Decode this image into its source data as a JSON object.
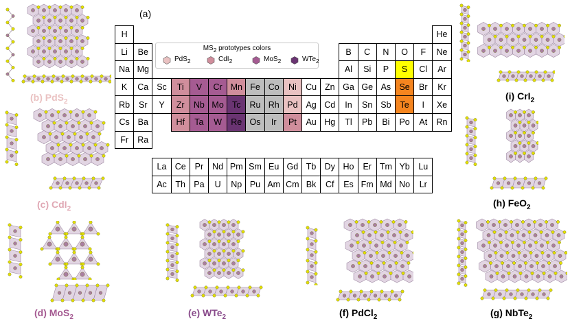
{
  "figure": {
    "panel_label": "(a)",
    "legend": {
      "title_base": "MS",
      "title_sub": "2",
      "title_rest": " prototypes colors",
      "items": [
        {
          "base": "PdS",
          "sub": "2",
          "color": "#eac2c2"
        },
        {
          "base": "CdI",
          "sub": "2",
          "color": "#d08e9c"
        },
        {
          "base": "MoS",
          "sub": "2",
          "color": "#a55b92"
        },
        {
          "base": "WTe",
          "sub": "2",
          "color": "#6a3472"
        }
      ]
    },
    "highlight_colors": {
      "PdS2": "#eac2c2",
      "CdI2": "#d08e9c",
      "MoS2": "#a55b92",
      "WTe2": "#6a3472",
      "grey": "#bdbdbd",
      "S": "#ffff00",
      "SeTe": "#f5851f"
    },
    "atom_colors": {
      "metal": "#a97ea1",
      "chalcogen": "#e3e000",
      "polyhedron": "#d8c7da"
    },
    "periodic_table": {
      "main": [
        {
          "s": "H",
          "r": 0,
          "c": 0
        },
        {
          "s": "He",
          "r": 0,
          "c": 17
        },
        {
          "s": "Li",
          "r": 1,
          "c": 0
        },
        {
          "s": "Be",
          "r": 1,
          "c": 1
        },
        {
          "s": "B",
          "r": 1,
          "c": 12
        },
        {
          "s": "C",
          "r": 1,
          "c": 13
        },
        {
          "s": "N",
          "r": 1,
          "c": 14
        },
        {
          "s": "O",
          "r": 1,
          "c": 15
        },
        {
          "s": "F",
          "r": 1,
          "c": 16
        },
        {
          "s": "Ne",
          "r": 1,
          "c": 17
        },
        {
          "s": "Na",
          "r": 2,
          "c": 0
        },
        {
          "s": "Mg",
          "r": 2,
          "c": 1
        },
        {
          "s": "Al",
          "r": 2,
          "c": 12
        },
        {
          "s": "Si",
          "r": 2,
          "c": 13
        },
        {
          "s": "P",
          "r": 2,
          "c": 14
        },
        {
          "s": "S",
          "r": 2,
          "c": 15,
          "h": "S"
        },
        {
          "s": "Cl",
          "r": 2,
          "c": 16
        },
        {
          "s": "Ar",
          "r": 2,
          "c": 17
        },
        {
          "s": "K",
          "r": 3,
          "c": 0
        },
        {
          "s": "Ca",
          "r": 3,
          "c": 1
        },
        {
          "s": "Sc",
          "r": 3,
          "c": 2
        },
        {
          "s": "Ti",
          "r": 3,
          "c": 3,
          "h": "CdI2"
        },
        {
          "s": "V",
          "r": 3,
          "c": 4,
          "h": "MoS2"
        },
        {
          "s": "Cr",
          "r": 3,
          "c": 5,
          "h": "MoS2"
        },
        {
          "s": "Mn",
          "r": 3,
          "c": 6,
          "h": "CdI2"
        },
        {
          "s": "Fe",
          "r": 3,
          "c": 7,
          "h": "grey"
        },
        {
          "s": "Co",
          "r": 3,
          "c": 8,
          "h": "grey"
        },
        {
          "s": "Ni",
          "r": 3,
          "c": 9,
          "h": "PdS2"
        },
        {
          "s": "Cu",
          "r": 3,
          "c": 10
        },
        {
          "s": "Zn",
          "r": 3,
          "c": 11
        },
        {
          "s": "Ga",
          "r": 3,
          "c": 12
        },
        {
          "s": "Ge",
          "r": 3,
          "c": 13
        },
        {
          "s": "As",
          "r": 3,
          "c": 14
        },
        {
          "s": "Se",
          "r": 3,
          "c": 15,
          "h": "SeTe"
        },
        {
          "s": "Br",
          "r": 3,
          "c": 16
        },
        {
          "s": "Kr",
          "r": 3,
          "c": 17
        },
        {
          "s": "Rb",
          "r": 4,
          "c": 0
        },
        {
          "s": "Sr",
          "r": 4,
          "c": 1
        },
        {
          "s": "Y",
          "r": 4,
          "c": 2
        },
        {
          "s": "Zr",
          "r": 4,
          "c": 3,
          "h": "CdI2"
        },
        {
          "s": "Nb",
          "r": 4,
          "c": 4,
          "h": "MoS2"
        },
        {
          "s": "Mo",
          "r": 4,
          "c": 5,
          "h": "MoS2"
        },
        {
          "s": "Tc",
          "r": 4,
          "c": 6,
          "h": "WTe2"
        },
        {
          "s": "Ru",
          "r": 4,
          "c": 7,
          "h": "grey"
        },
        {
          "s": "Rh",
          "r": 4,
          "c": 8,
          "h": "grey"
        },
        {
          "s": "Pd",
          "r": 4,
          "c": 9,
          "h": "PdS2"
        },
        {
          "s": "Ag",
          "r": 4,
          "c": 10
        },
        {
          "s": "Cd",
          "r": 4,
          "c": 11
        },
        {
          "s": "In",
          "r": 4,
          "c": 12
        },
        {
          "s": "Sn",
          "r": 4,
          "c": 13
        },
        {
          "s": "Sb",
          "r": 4,
          "c": 14
        },
        {
          "s": "Te",
          "r": 4,
          "c": 15,
          "h": "SeTe"
        },
        {
          "s": "I",
          "r": 4,
          "c": 16
        },
        {
          "s": "Xe",
          "r": 4,
          "c": 17
        },
        {
          "s": "Cs",
          "r": 5,
          "c": 0
        },
        {
          "s": "Ba",
          "r": 5,
          "c": 1
        },
        {
          "s": "Hf",
          "r": 5,
          "c": 3,
          "h": "CdI2"
        },
        {
          "s": "Ta",
          "r": 5,
          "c": 4,
          "h": "MoS2"
        },
        {
          "s": "W",
          "r": 5,
          "c": 5,
          "h": "MoS2"
        },
        {
          "s": "Re",
          "r": 5,
          "c": 6,
          "h": "WTe2"
        },
        {
          "s": "Os",
          "r": 5,
          "c": 7,
          "h": "grey"
        },
        {
          "s": "Ir",
          "r": 5,
          "c": 8,
          "h": "grey"
        },
        {
          "s": "Pt",
          "r": 5,
          "c": 9,
          "h": "CdI2"
        },
        {
          "s": "Au",
          "r": 5,
          "c": 10
        },
        {
          "s": "Hg",
          "r": 5,
          "c": 11
        },
        {
          "s": "Tl",
          "r": 5,
          "c": 12
        },
        {
          "s": "Pb",
          "r": 5,
          "c": 13
        },
        {
          "s": "Bi",
          "r": 5,
          "c": 14
        },
        {
          "s": "Po",
          "r": 5,
          "c": 15
        },
        {
          "s": "At",
          "r": 5,
          "c": 16
        },
        {
          "s": "Rn",
          "r": 5,
          "c": 17
        },
        {
          "s": "Fr",
          "r": 6,
          "c": 0
        },
        {
          "s": "Ra",
          "r": 6,
          "c": 1
        }
      ],
      "lanthanides": [
        "La",
        "Ce",
        "Pr",
        "Nd",
        "Pm",
        "Sm",
        "Eu",
        "Gd",
        "Tb",
        "Dy",
        "Ho",
        "Er",
        "Tm",
        "Yb",
        "Lu"
      ],
      "actinides": [
        "Ac",
        "Th",
        "Pa",
        "U",
        "Np",
        "Pu",
        "Am",
        "Cm",
        "Bk",
        "Cf",
        "Es",
        "Fm",
        "Md",
        "No",
        "Lr"
      ]
    },
    "captions": {
      "b": {
        "pre": "(b) PdS",
        "sub": "2",
        "color": "#eac2c2"
      },
      "c": {
        "pre": "(c) CdI",
        "sub": "2",
        "color": "#e0a8b4"
      },
      "d": {
        "pre": "(d) MoS",
        "sub": "2",
        "color": "#a55b92"
      },
      "e": {
        "pre": "(e) WTe",
        "sub": "2",
        "color": "#8a4c8c"
      },
      "f": {
        "pre": "(f) PdCl",
        "sub": "2",
        "color": "#000000"
      },
      "g": {
        "pre": "(g) NbTe",
        "sub": "2",
        "color": "#000000"
      },
      "h": {
        "pre": "(h) FeO",
        "sub": "2",
        "color": "#000000"
      },
      "i": {
        "pre": "(i) CrI",
        "sub": "2",
        "color": "#000000"
      }
    }
  }
}
